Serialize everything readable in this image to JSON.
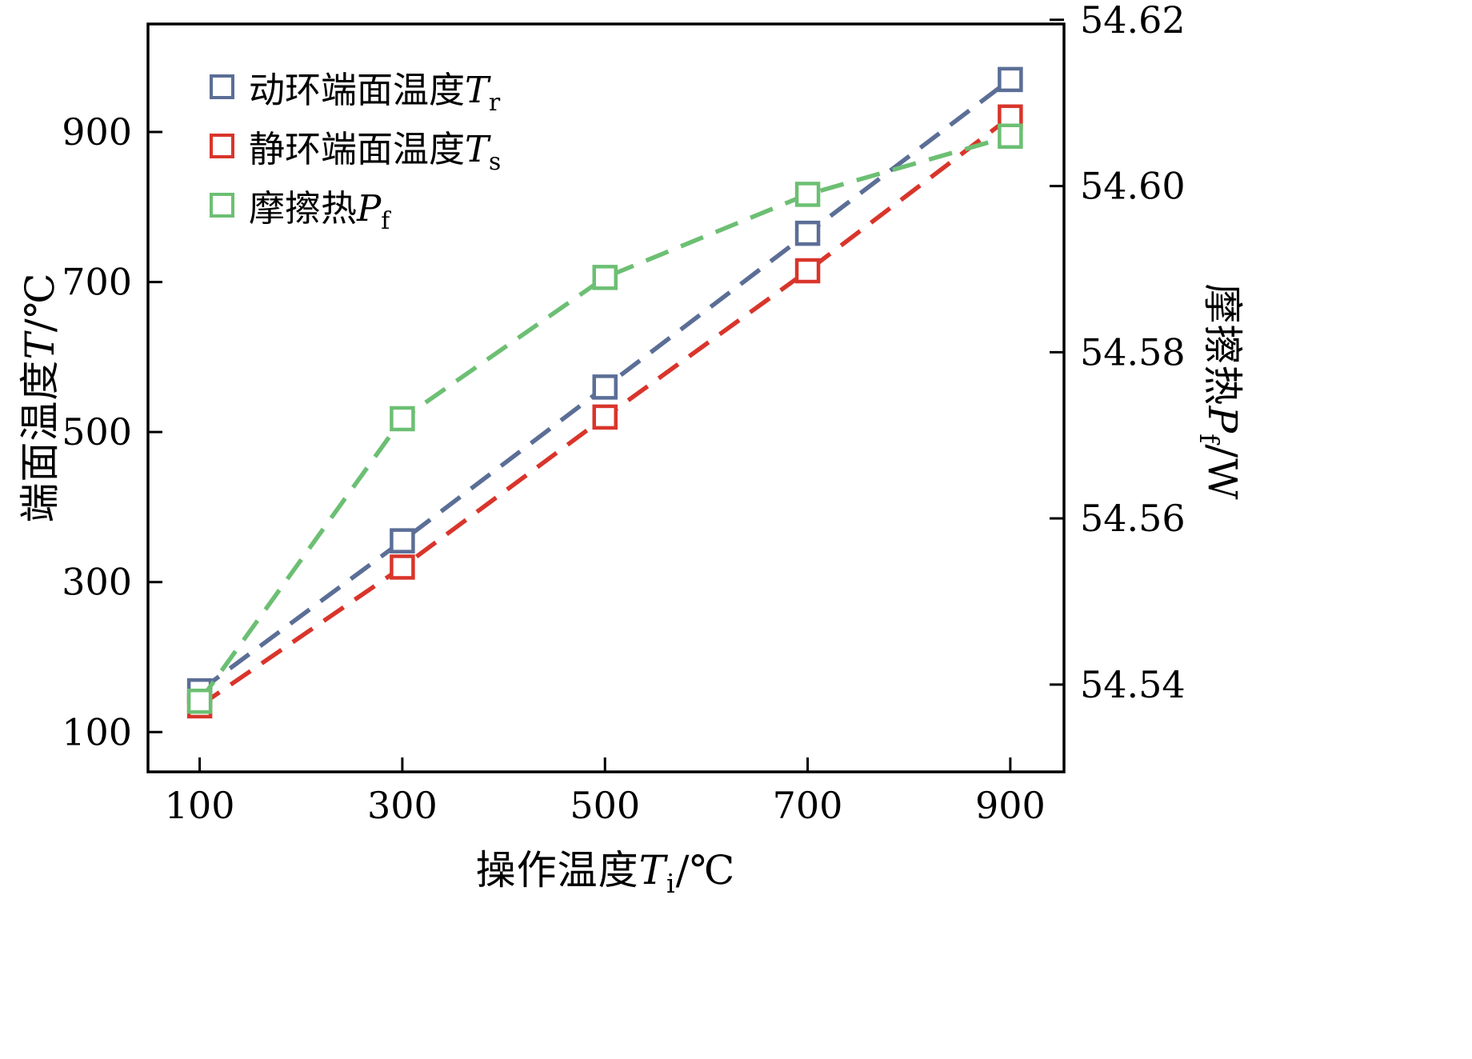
{
  "chart_data": {
    "type": "line",
    "x": [
      100,
      300,
      500,
      700,
      900
    ],
    "series": [
      {
        "name": "动环端面温度Tr",
        "axis": "left",
        "color": "#5b6e96",
        "marker": "open-square",
        "linestyle": "dashed",
        "values": [
          155,
          355,
          560,
          765,
          970
        ]
      },
      {
        "name": "静环端面温度Ts",
        "axis": "left",
        "color": "#d9352b",
        "marker": "open-square",
        "linestyle": "dashed",
        "values": [
          135,
          320,
          520,
          715,
          920
        ]
      },
      {
        "name": "摩擦热Pf",
        "axis": "right",
        "color": "#6cbf73",
        "marker": "open-square",
        "linestyle": "dashed",
        "values": [
          54.538,
          54.572,
          54.589,
          54.599,
          54.606
        ]
      }
    ],
    "xlabel": "操作温度Ti/℃",
    "ylabel_left": "端面温度T/℃",
    "ylabel_right": "摩擦热Pf/W",
    "x_ticks": [
      100,
      300,
      500,
      700,
      900
    ],
    "x_tick_labels": [
      "100",
      "300",
      "500",
      "700",
      "900"
    ],
    "y_ticks_left": [
      100,
      300,
      500,
      700,
      900
    ],
    "y_tick_labels_left": [
      "100",
      "300",
      "500",
      "700",
      "900"
    ],
    "y_ticks_right": [
      54.54,
      54.56,
      54.58,
      54.6,
      54.62
    ],
    "y_tick_labels_right": [
      "54.54",
      "54.56",
      "54.58",
      "54.60",
      "54.62"
    ],
    "xlim": [
      49,
      953
    ],
    "ylim_left": [
      47,
      1044
    ],
    "ylim_right": [
      54.5295,
      54.6195
    ],
    "grid": false,
    "legend_position": "top-left"
  },
  "labels": {
    "x": {
      "prefix": "操作温度",
      "symbol": "T",
      "sub": "i",
      "unit": "/℃"
    },
    "left": {
      "prefix": "端面温度",
      "symbol": "T",
      "sub": "",
      "unit": "/℃"
    },
    "right": {
      "prefix": "摩擦热",
      "symbol": "P",
      "sub": "f",
      "unit": "/W"
    }
  },
  "legend": {
    "items": [
      {
        "prefix": "动环端面温度",
        "symbol": "T",
        "sub": "r",
        "color": "#5b6e96"
      },
      {
        "prefix": "静环端面温度",
        "symbol": "T",
        "sub": "s",
        "color": "#d9352b"
      },
      {
        "prefix": "摩擦热",
        "symbol": "P",
        "sub": "f",
        "color": "#6cbf73"
      }
    ]
  },
  "style": {
    "frame_color": "#000000",
    "background": "#ffffff"
  }
}
